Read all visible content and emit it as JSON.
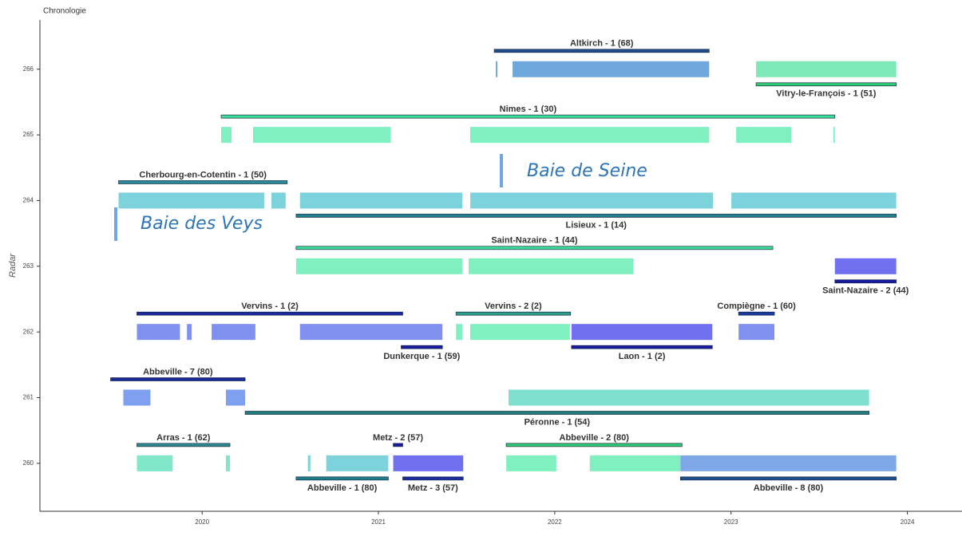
{
  "chart_data": {
    "type": "timeline",
    "title": "Chronologie",
    "y_label": "Radar",
    "xlim": [
      2019.08,
      2024.31
    ],
    "ylim": [
      259.27,
      266.75
    ],
    "xticks": [
      2020,
      2021,
      2022,
      2023,
      2024
    ],
    "yticks": [
      260,
      261,
      262,
      263,
      264,
      265,
      266
    ],
    "annotations": [
      "Baie de Seine",
      "Baie des Veys"
    ],
    "missions": [
      {
        "name": "Altkirch - 1 (68)",
        "radar": 266,
        "start": 2021.657,
        "end": 2022.876,
        "color": "#1e4f8c",
        "side": "above"
      },
      {
        "name": "Vitry-le-François - 1 (51)",
        "radar": 266,
        "start": 2023.142,
        "end": 2023.937,
        "color": "#2ecc71",
        "side": "below"
      },
      {
        "name": "Nimes - 1 (30)",
        "radar": 265,
        "start": 2020.108,
        "end": 2023.589,
        "color": "#3ddc97",
        "side": "above"
      },
      {
        "name": "Cherbourg-en-Cotentin - 1 (50)",
        "radar": 264,
        "start": 2019.526,
        "end": 2020.483,
        "color": "#2a8a9a",
        "side": "above"
      },
      {
        "name": "Lisieux - 1 (14)",
        "radar": 264,
        "start": 2020.533,
        "end": 2023.937,
        "color": "#1f7f8a",
        "side": "below"
      },
      {
        "name": "Saint-Nazaire - 1 (44)",
        "radar": 263,
        "start": 2020.533,
        "end": 2023.237,
        "color": "#3ddc97",
        "side": "above"
      },
      {
        "name": "Saint-Nazaire - 2 (44)",
        "radar": 263,
        "start": 2023.589,
        "end": 2023.937,
        "color": "#1a1aa0",
        "side": "below"
      },
      {
        "name": "Vervins - 1 (2)",
        "radar": 262,
        "start": 2019.63,
        "end": 2021.138,
        "color": "#1a2aa0",
        "side": "above"
      },
      {
        "name": "Vervins - 2 (2)",
        "radar": 262,
        "start": 2021.44,
        "end": 2022.09,
        "color": "#2aa08a",
        "side": "above"
      },
      {
        "name": "Compiègne - 1 (60)",
        "radar": 262,
        "start": 2023.043,
        "end": 2023.246,
        "color": "#1a3aa0",
        "side": "above"
      },
      {
        "name": "Dunkerque - 1 (59)",
        "radar": 262,
        "start": 2021.129,
        "end": 2021.363,
        "color": "#1a1aa0",
        "side": "below"
      },
      {
        "name": "Laon - 1 (2)",
        "radar": 262,
        "start": 2022.095,
        "end": 2022.894,
        "color": "#1a1aa0",
        "side": "below"
      },
      {
        "name": "Abbeville - 7 (80)",
        "radar": 261,
        "start": 2019.481,
        "end": 2020.244,
        "color": "#1a2a9a",
        "side": "above"
      },
      {
        "name": "Péronne - 1 (54)",
        "radar": 261,
        "start": 2020.244,
        "end": 2023.783,
        "color": "#1f7f7a",
        "side": "below"
      },
      {
        "name": "Arras - 1 (62)",
        "radar": 260,
        "start": 2019.63,
        "end": 2020.158,
        "color": "#2a8a8a",
        "side": "above"
      },
      {
        "name": "Metz - 2 (57)",
        "radar": 260,
        "start": 2021.084,
        "end": 2021.138,
        "color": "#1a1aa0",
        "side": "above"
      },
      {
        "name": "Abbeville - 2 (80)",
        "radar": 260,
        "start": 2021.725,
        "end": 2022.722,
        "color": "#2ecc71",
        "side": "above"
      },
      {
        "name": "Abbeville - 1 (80)",
        "radar": 260,
        "start": 2020.533,
        "end": 2021.056,
        "color": "#1f7f8a",
        "side": "below"
      },
      {
        "name": "Metz - 3 (57)",
        "radar": 260,
        "start": 2021.138,
        "end": 2021.481,
        "color": "#1a2aa0",
        "side": "below"
      },
      {
        "name": "Abbeville - 8 (80)",
        "radar": 260,
        "start": 2022.713,
        "end": 2023.937,
        "color": "#1e4f8c",
        "side": "below"
      }
    ],
    "segments": [
      {
        "radar": 266,
        "start": 2021.666,
        "end": 2021.675,
        "color": "#6fa8dc"
      },
      {
        "radar": 266,
        "start": 2021.761,
        "end": 2022.876,
        "color": "#6fa8dc"
      },
      {
        "radar": 266,
        "start": 2023.142,
        "end": 2023.937,
        "color": "#7de8b8"
      },
      {
        "radar": 265,
        "start": 2020.108,
        "end": 2020.167,
        "color": "#80f0c0"
      },
      {
        "radar": 265,
        "start": 2020.289,
        "end": 2021.07,
        "color": "#80f0c0"
      },
      {
        "radar": 265,
        "start": 2021.521,
        "end": 2022.876,
        "color": "#80f0c0"
      },
      {
        "radar": 265,
        "start": 2023.029,
        "end": 2023.341,
        "color": "#80f0c0"
      },
      {
        "radar": 265,
        "start": 2023.58,
        "end": 2023.589,
        "color": "#80f0c0"
      },
      {
        "radar": 264,
        "start": 2019.526,
        "end": 2020.352,
        "color": "#7dd3dc"
      },
      {
        "radar": 264,
        "start": 2020.393,
        "end": 2020.474,
        "color": "#7dd3dc"
      },
      {
        "radar": 264,
        "start": 2020.555,
        "end": 2021.476,
        "color": "#7dd3dc"
      },
      {
        "radar": 264,
        "start": 2021.521,
        "end": 2022.898,
        "color": "#7dd3dc"
      },
      {
        "radar": 264,
        "start": 2023.002,
        "end": 2023.937,
        "color": "#7dd3dc"
      },
      {
        "radar": 263,
        "start": 2020.533,
        "end": 2021.476,
        "color": "#80f0c0"
      },
      {
        "radar": 263,
        "start": 2021.512,
        "end": 2022.447,
        "color": "#80f0c0"
      },
      {
        "radar": 263,
        "start": 2023.589,
        "end": 2023.937,
        "color": "#7070f0"
      },
      {
        "radar": 262,
        "start": 2019.63,
        "end": 2019.874,
        "color": "#8090f0"
      },
      {
        "radar": 262,
        "start": 2019.914,
        "end": 2019.941,
        "color": "#8090f0"
      },
      {
        "radar": 262,
        "start": 2020.054,
        "end": 2020.302,
        "color": "#8090f0"
      },
      {
        "radar": 262,
        "start": 2020.555,
        "end": 2021.363,
        "color": "#8090f0"
      },
      {
        "radar": 262,
        "start": 2021.44,
        "end": 2021.476,
        "color": "#80f0c0"
      },
      {
        "radar": 262,
        "start": 2021.521,
        "end": 2022.086,
        "color": "#80f0c0"
      },
      {
        "radar": 262,
        "start": 2022.095,
        "end": 2022.894,
        "color": "#7070f0"
      },
      {
        "radar": 262,
        "start": 2023.043,
        "end": 2023.246,
        "color": "#8090f0"
      },
      {
        "radar": 261,
        "start": 2019.553,
        "end": 2019.707,
        "color": "#7fa0f0"
      },
      {
        "radar": 261,
        "start": 2020.135,
        "end": 2020.244,
        "color": "#7fa0f0"
      },
      {
        "radar": 261,
        "start": 2021.738,
        "end": 2023.783,
        "color": "#80e0d0"
      },
      {
        "radar": 260,
        "start": 2019.63,
        "end": 2019.833,
        "color": "#80e8c8"
      },
      {
        "radar": 260,
        "start": 2020.135,
        "end": 2020.158,
        "color": "#80e8c8"
      },
      {
        "radar": 260,
        "start": 2020.6,
        "end": 2020.614,
        "color": "#7dd3dc"
      },
      {
        "radar": 260,
        "start": 2020.704,
        "end": 2021.056,
        "color": "#7dd3dc"
      },
      {
        "radar": 260,
        "start": 2021.084,
        "end": 2021.481,
        "color": "#7070f0"
      },
      {
        "radar": 260,
        "start": 2021.725,
        "end": 2022.009,
        "color": "#80f0c0"
      },
      {
        "radar": 260,
        "start": 2022.199,
        "end": 2022.713,
        "color": "#80f0c0"
      },
      {
        "radar": 260,
        "start": 2022.713,
        "end": 2023.937,
        "color": "#7fa8e8"
      }
    ]
  }
}
